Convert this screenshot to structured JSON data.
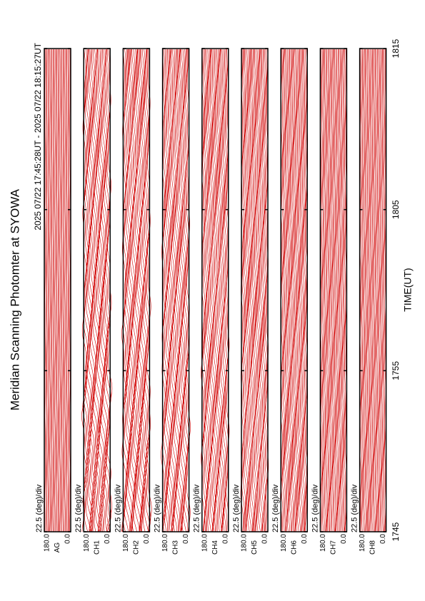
{
  "chart_data": {
    "type": "stacked-traces",
    "title": "Meridian Scanning Photomter at SYOWA",
    "subtitle": "2025 07/22 17:45:28UT - 2025 07/22 18:15:27UT",
    "x_label": "TIME(UT)",
    "categories": [
      "1745",
      "1755",
      "1805",
      "1815"
    ],
    "color": "#d00000",
    "panels": [
      {
        "label": "AG",
        "scale_label": "22.5 (deg)/div",
        "ylim": [
          0,
          180
        ],
        "yticks": [
          {
            "value": 180,
            "label": "180.0"
          },
          {
            "value": 0,
            "label": "0.0"
          }
        ]
      },
      {
        "label": "CH1",
        "scale_label": "22.5 (deg)/div",
        "ylim": [
          0,
          180
        ],
        "yticks": [
          {
            "value": 180,
            "label": "180.0"
          },
          {
            "value": 0,
            "label": "0.0"
          }
        ]
      },
      {
        "label": "CH2",
        "scale_label": "22.5 (deg)/div",
        "ylim": [
          0,
          180
        ],
        "yticks": [
          {
            "value": 180,
            "label": "180.0"
          },
          {
            "value": 0,
            "label": "0.0"
          }
        ]
      },
      {
        "label": "CH3",
        "scale_label": "22.5 (deg)/div",
        "ylim": [
          0,
          180
        ],
        "yticks": [
          {
            "value": 180,
            "label": "180.0"
          },
          {
            "value": 0,
            "label": "0.0"
          }
        ]
      },
      {
        "label": "CH4",
        "scale_label": "22.5 (deg)/div",
        "ylim": [
          0,
          180
        ],
        "yticks": [
          {
            "value": 180,
            "label": "180.0"
          },
          {
            "value": 0,
            "label": "0.0"
          }
        ]
      },
      {
        "label": "CH5",
        "scale_label": "22.5 (deg)/div",
        "ylim": [
          0,
          180
        ],
        "yticks": [
          {
            "value": 180,
            "label": "180.0"
          },
          {
            "value": 0,
            "label": "0.0"
          }
        ]
      },
      {
        "label": "CH6",
        "scale_label": "22.5 (deg)/div",
        "ylim": [
          0,
          180
        ],
        "yticks": [
          {
            "value": 180,
            "label": "180.0"
          },
          {
            "value": 0,
            "label": "0.0"
          }
        ]
      },
      {
        "label": "CH7",
        "scale_label": "22.5 (deg)/div",
        "ylim": [
          0,
          180
        ],
        "yticks": [
          {
            "value": 180,
            "label": "180.0"
          },
          {
            "value": 0,
            "label": "0.0"
          }
        ]
      },
      {
        "label": "CH8",
        "scale_label": "22.5 (deg)/div",
        "ylim": [
          0,
          180
        ],
        "yticks": [
          {
            "value": 180,
            "label": "180.0"
          },
          {
            "value": 0,
            "label": "0.0"
          }
        ]
      }
    ]
  }
}
